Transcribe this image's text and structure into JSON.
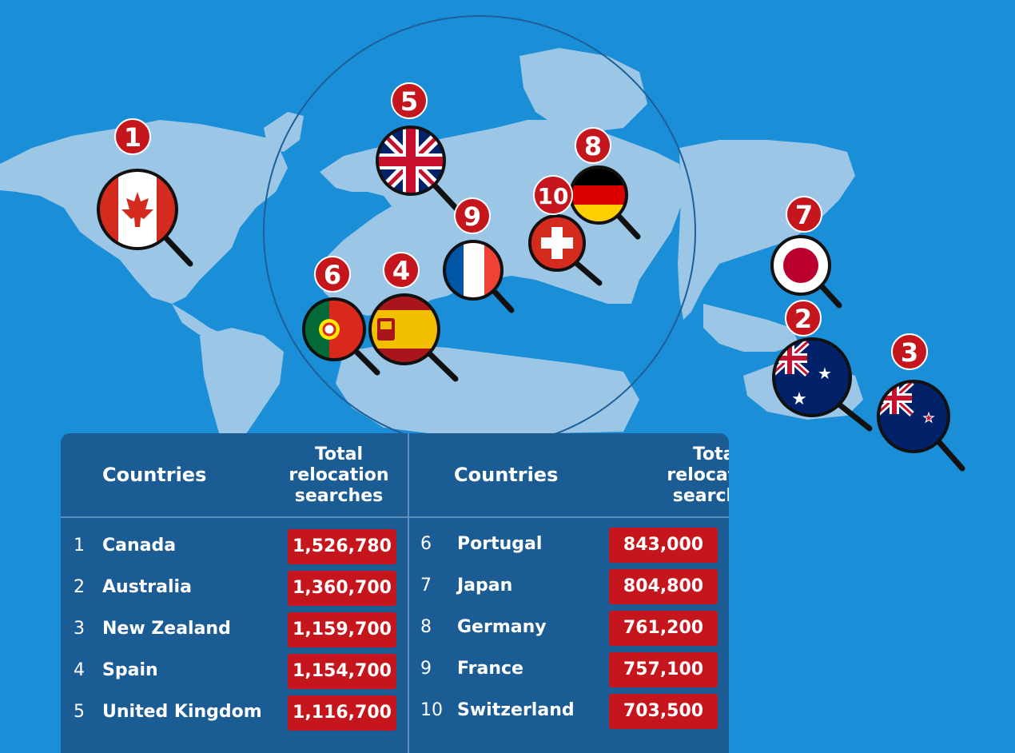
{
  "map": {
    "flags": [
      {
        "rank": "1",
        "country": "Canada"
      },
      {
        "rank": "2",
        "country": "Australia"
      },
      {
        "rank": "3",
        "country": "New Zealand"
      },
      {
        "rank": "4",
        "country": "Spain"
      },
      {
        "rank": "5",
        "country": "United Kingdom"
      },
      {
        "rank": "6",
        "country": "Portugal"
      },
      {
        "rank": "7",
        "country": "Japan"
      },
      {
        "rank": "8",
        "country": "Germany"
      },
      {
        "rank": "9",
        "country": "France"
      },
      {
        "rank": "10",
        "country": "Switzerland"
      }
    ],
    "colors": {
      "ocean": "#1a8ed6",
      "land": "#9cc6e6",
      "badge": "#c4161c",
      "panel": "#1c5c95"
    }
  },
  "table": {
    "header_country": "Countries",
    "header_total_line1": "Total",
    "header_total_line2": "relocation",
    "header_total_line3": "searches",
    "left_rows": [
      {
        "rank": "1",
        "country": "Canada",
        "value": "1,526,780"
      },
      {
        "rank": "2",
        "country": "Australia",
        "value": "1,360,700"
      },
      {
        "rank": "3",
        "country": "New Zealand",
        "value": "1,159,700"
      },
      {
        "rank": "4",
        "country": "Spain",
        "value": "1,154,700"
      },
      {
        "rank": "5",
        "country": "United Kingdom",
        "value": "1,116,700"
      }
    ],
    "right_rows": [
      {
        "rank": "6",
        "country": "Portugal",
        "value": "843,000"
      },
      {
        "rank": "7",
        "country": "Japan",
        "value": "804,800"
      },
      {
        "rank": "8",
        "country": "Germany",
        "value": "761,200"
      },
      {
        "rank": "9",
        "country": "France",
        "value": "757,100"
      },
      {
        "rank": "10",
        "country": "Switzerland",
        "value": "703,500"
      }
    ]
  }
}
